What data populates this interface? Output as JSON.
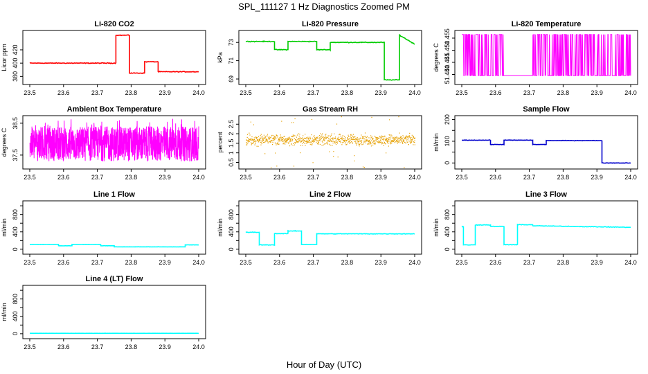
{
  "figure": {
    "title": "SPL_111127  1 Hz Diagnostics Zoomed PM",
    "xlabel": "Hour of Day (UTC)"
  },
  "chart_data": [
    {
      "type": "line",
      "title": "Li-820 CO2",
      "ylabel": "Licor ppm",
      "color": "#ff0000",
      "xlim": [
        23.5,
        24.0
      ],
      "ylim": [
        372,
        445
      ],
      "xticks": [
        23.5,
        23.6,
        23.7,
        23.8,
        23.9,
        24.0
      ],
      "yticks": [
        380,
        400,
        420
      ],
      "noise": 0.8,
      "segments": [
        {
          "x0": 23.5,
          "x1": 23.755,
          "y": 400
        },
        {
          "x0": 23.755,
          "x1": 23.795,
          "y": 442
        },
        {
          "x0": 23.795,
          "x1": 23.84,
          "y": 385
        },
        {
          "x0": 23.84,
          "x1": 23.88,
          "y": 402
        },
        {
          "x0": 23.88,
          "x1": 24.0,
          "y": 387
        }
      ]
    },
    {
      "type": "line",
      "title": "Li-820 Pressure",
      "ylabel": "kPa",
      "color": "#00cc00",
      "xlim": [
        23.5,
        24.0
      ],
      "ylim": [
        68.7,
        74.0
      ],
      "xticks": [
        23.5,
        23.6,
        23.7,
        23.8,
        23.9,
        24.0
      ],
      "yticks": [
        69,
        71,
        73
      ],
      "noise": 0.06,
      "segments": [
        {
          "x0": 23.5,
          "x1": 23.585,
          "y": 73.1
        },
        {
          "x0": 23.585,
          "x1": 23.625,
          "y": 72.2
        },
        {
          "x0": 23.625,
          "x1": 23.71,
          "y": 73.1
        },
        {
          "x0": 23.71,
          "x1": 23.75,
          "y": 72.2
        },
        {
          "x0": 23.75,
          "x1": 23.91,
          "y": 73.0
        },
        {
          "x0": 23.91,
          "x1": 23.955,
          "y": 68.9
        },
        {
          "x0": 23.955,
          "x1": 24.0,
          "y0": 73.8,
          "y1": 72.8
        }
      ]
    },
    {
      "type": "line",
      "title": "Li-820 Temperature",
      "ylabel": "degrees C",
      "color": "#ff00ff",
      "xlim": [
        23.5,
        24.0
      ],
      "ylim": [
        51.437,
        51.457
      ],
      "xticks": [
        23.5,
        23.6,
        23.7,
        23.8,
        23.9,
        24.0
      ],
      "yticks": [
        51.44,
        51.445,
        51.45,
        51.455
      ],
      "ytick_labels": [
        "51.440",
        "51.445",
        "51.450",
        "51.455"
      ],
      "binary_levels": [
        51.4395,
        51.4565
      ],
      "quiet_intervals": [
        [
          23.625,
          23.71
        ]
      ]
    },
    {
      "type": "line",
      "title": "Ambient Box Temperature",
      "ylabel": "degrees C",
      "color": "#ff00ff",
      "xlim": [
        23.5,
        24.0
      ],
      "ylim": [
        37.15,
        38.65
      ],
      "xticks": [
        23.5,
        23.6,
        23.7,
        23.8,
        23.9,
        24.0
      ],
      "yticks": [
        37.5,
        38.5
      ],
      "center": 37.85,
      "band_low": 37.3,
      "band_high": 38.4
    },
    {
      "type": "scatter",
      "title": "Gas Stream RH",
      "ylabel": "percent",
      "color": "#e6a000",
      "xlim": [
        23.5,
        24.0
      ],
      "ylim": [
        0.3,
        2.8
      ],
      "xticks": [
        23.5,
        23.6,
        23.7,
        23.8,
        23.9,
        24.0
      ],
      "yticks": [
        0.5,
        1.0,
        1.5,
        2.0,
        2.5
      ],
      "center": 1.7,
      "band_low": 1.3,
      "band_high": 2.1
    },
    {
      "type": "line",
      "title": "Sample Flow",
      "ylabel": "ml/min",
      "color": "#0000cc",
      "xlim": [
        23.5,
        24.0
      ],
      "ylim": [
        -15,
        205
      ],
      "xticks": [
        23.5,
        23.6,
        23.7,
        23.8,
        23.9,
        24.0
      ],
      "yticks": [
        0,
        50,
        100,
        150,
        200
      ],
      "ytick_labels": [
        "0",
        "",
        "100",
        "",
        "200"
      ],
      "noise": 1.5,
      "segments": [
        {
          "x0": 23.5,
          "x1": 23.585,
          "y": 105
        },
        {
          "x0": 23.585,
          "x1": 23.625,
          "y": 85
        },
        {
          "x0": 23.625,
          "x1": 23.71,
          "y": 105
        },
        {
          "x0": 23.71,
          "x1": 23.75,
          "y": 85
        },
        {
          "x0": 23.75,
          "x1": 23.915,
          "y": 103
        },
        {
          "x0": 23.915,
          "x1": 24.0,
          "y": 0
        }
      ]
    },
    {
      "type": "line",
      "title": "Line 1 Flow",
      "ylabel": "ml/min",
      "color": "#00ffff",
      "xlim": [
        23.5,
        24.0
      ],
      "ylim": [
        -50,
        1050
      ],
      "xticks": [
        23.5,
        23.6,
        23.7,
        23.8,
        23.9,
        24.0
      ],
      "yticks": [
        0,
        200,
        400,
        600,
        800,
        1000
      ],
      "ytick_labels": [
        "0",
        "",
        "400",
        "",
        "800",
        ""
      ],
      "noise": 4,
      "segments": [
        {
          "x0": 23.5,
          "x1": 23.585,
          "y": 110
        },
        {
          "x0": 23.585,
          "x1": 23.625,
          "y": 80
        },
        {
          "x0": 23.625,
          "x1": 23.71,
          "y": 110
        },
        {
          "x0": 23.71,
          "x1": 23.75,
          "y": 80
        },
        {
          "x0": 23.75,
          "x1": 23.96,
          "y": 55
        },
        {
          "x0": 23.96,
          "x1": 24.0,
          "y": 100
        }
      ]
    },
    {
      "type": "line",
      "title": "Line 2 Flow",
      "ylabel": "ml/min",
      "color": "#00ffff",
      "xlim": [
        23.5,
        24.0
      ],
      "ylim": [
        -50,
        1050
      ],
      "xticks": [
        23.5,
        23.6,
        23.7,
        23.8,
        23.9,
        24.0
      ],
      "yticks": [
        0,
        200,
        400,
        600,
        800,
        1000
      ],
      "ytick_labels": [
        "0",
        "",
        "400",
        "",
        "800",
        ""
      ],
      "noise": 10,
      "segments": [
        {
          "x0": 23.5,
          "x1": 23.54,
          "y": 390
        },
        {
          "x0": 23.54,
          "x1": 23.585,
          "y": 100
        },
        {
          "x0": 23.585,
          "x1": 23.625,
          "y": 360
        },
        {
          "x0": 23.625,
          "x1": 23.665,
          "y": 420
        },
        {
          "x0": 23.665,
          "x1": 23.71,
          "y": 110
        },
        {
          "x0": 23.71,
          "x1": 24.0,
          "y": 355
        }
      ]
    },
    {
      "type": "line",
      "title": "Line 3 Flow",
      "ylabel": "ml/min",
      "color": "#00ffff",
      "xlim": [
        23.5,
        24.0
      ],
      "ylim": [
        -50,
        1050
      ],
      "xticks": [
        23.5,
        23.6,
        23.7,
        23.8,
        23.9,
        24.0
      ],
      "yticks": [
        0,
        200,
        400,
        600,
        800,
        1000
      ],
      "ytick_labels": [
        "0",
        "",
        "400",
        "",
        "800",
        ""
      ],
      "noise": 10,
      "segments": [
        {
          "x0": 23.5,
          "x1": 23.505,
          "y": 520
        },
        {
          "x0": 23.505,
          "x1": 23.54,
          "y": 100
        },
        {
          "x0": 23.54,
          "x1": 23.585,
          "y": 560
        },
        {
          "x0": 23.585,
          "x1": 23.625,
          "y": 525
        },
        {
          "x0": 23.625,
          "x1": 23.665,
          "y": 105
        },
        {
          "x0": 23.665,
          "x1": 23.71,
          "y": 565
        },
        {
          "x0": 23.71,
          "x1": 24.0,
          "y0": 540,
          "y1": 505
        }
      ]
    },
    {
      "type": "line",
      "title": "Line 4 (LT) Flow",
      "ylabel": "ml/min",
      "color": "#00ffff",
      "xlim": [
        23.5,
        24.0
      ],
      "ylim": [
        -50,
        1050
      ],
      "xticks": [
        23.5,
        23.6,
        23.7,
        23.8,
        23.9,
        24.0
      ],
      "yticks": [
        0,
        200,
        400,
        600,
        800,
        1000
      ],
      "ytick_labels": [
        "0",
        "",
        "400",
        "",
        "800",
        ""
      ],
      "noise": 2,
      "segments": [
        {
          "x0": 23.5,
          "x1": 24.0,
          "y": 10
        }
      ]
    }
  ]
}
